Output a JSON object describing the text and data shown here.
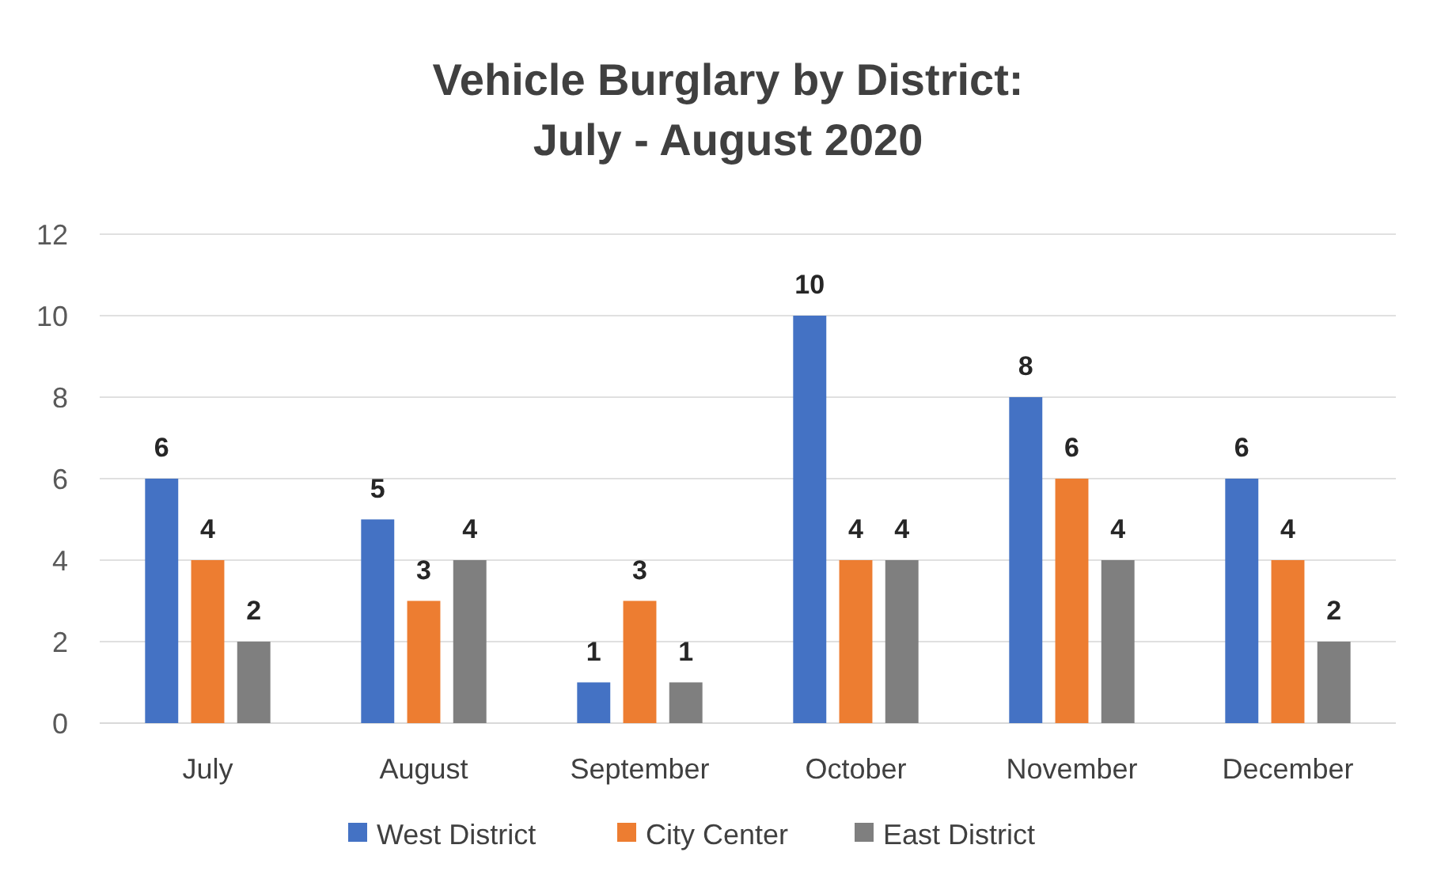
{
  "chart_data": {
    "type": "bar",
    "title": "Vehicle Burglary by District:\nJuly - August 2020",
    "categories": [
      "July",
      "August",
      "September",
      "October",
      "November",
      "December"
    ],
    "series": [
      {
        "name": "West District",
        "color": "#4472c4",
        "values": [
          6,
          5,
          1,
          10,
          8,
          6
        ]
      },
      {
        "name": "City Center",
        "color": "#ed7d31",
        "values": [
          4,
          3,
          3,
          4,
          6,
          4
        ]
      },
      {
        "name": "East District",
        "color": "#7f7f7f",
        "values": [
          2,
          4,
          1,
          4,
          4,
          2
        ]
      }
    ],
    "ylim": [
      0,
      12
    ],
    "yticks": [
      0,
      2,
      4,
      6,
      8,
      10,
      12
    ],
    "grid": "y",
    "legend": "bottom",
    "data_labels": true
  }
}
